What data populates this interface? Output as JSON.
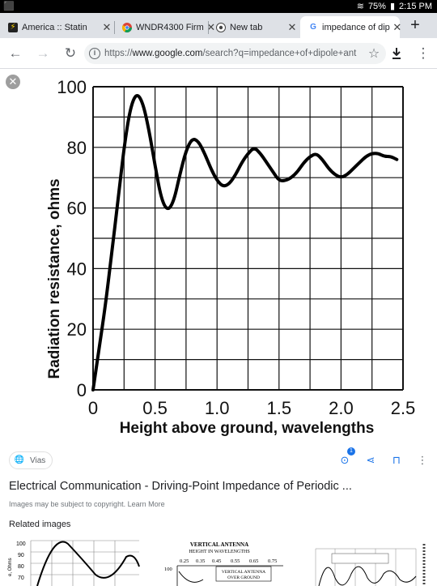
{
  "status_bar": {
    "battery": "75%",
    "time": "2:15 PM"
  },
  "tabs": [
    {
      "title": "America :: Statin",
      "favicon": "lightning-icon",
      "active": false
    },
    {
      "title": "WNDR4300 Firm",
      "favicon": "chrome-icon",
      "active": false
    },
    {
      "title": "New tab",
      "favicon": "chrome-icon",
      "active": false
    },
    {
      "title": "impedance of dip",
      "favicon": "google-icon",
      "active": true
    }
  ],
  "toolbar": {
    "url_prefix": "https://",
    "url_host": "www.google.com",
    "url_rest": "/search?q=impedance+of+dipole+ant"
  },
  "chart_data": {
    "type": "line",
    "xlabel": "Height above ground, wavelengths",
    "ylabel": "Radiation resistance, ohms",
    "xlim": [
      0,
      2.5
    ],
    "ylim": [
      0,
      100
    ],
    "x_ticks": [
      "0",
      "0.5",
      "1.0",
      "1.5",
      "2.0",
      "2.5"
    ],
    "y_ticks": [
      "0",
      "20",
      "40",
      "60",
      "80",
      "100"
    ],
    "grid": true,
    "series": [
      {
        "x": [
          0,
          0.05,
          0.1,
          0.15,
          0.2,
          0.25,
          0.3,
          0.35,
          0.4,
          0.45,
          0.5,
          0.55,
          0.6,
          0.65,
          0.7,
          0.75,
          0.8,
          0.85,
          0.9,
          0.95,
          1.0,
          1.05,
          1.1,
          1.15,
          1.2,
          1.25,
          1.3,
          1.35,
          1.4,
          1.45,
          1.5,
          1.55,
          1.6,
          1.65,
          1.7,
          1.75,
          1.8,
          1.85,
          1.9,
          1.95,
          2.0,
          2.05,
          2.1,
          2.15,
          2.2,
          2.25,
          2.3,
          2.35,
          2.4,
          2.45
        ],
        "values": [
          0,
          14,
          28,
          45,
          62,
          80,
          93,
          98,
          95,
          86,
          74,
          63,
          59,
          62,
          71,
          79,
          83,
          82,
          78,
          73,
          69,
          67,
          68,
          71,
          75,
          78,
          80,
          78,
          75,
          72,
          69,
          69,
          70,
          72,
          75,
          77,
          78,
          76,
          73,
          71,
          70,
          71,
          73,
          75,
          77,
          78,
          78,
          77,
          77,
          76
        ]
      }
    ]
  },
  "chip": {
    "label": "Vias"
  },
  "actions": {
    "lens_badge": "1"
  },
  "image_title": "Electrical Communication - Driving-Point Impedance of Periodic ...",
  "copyright": "Images may be subject to copyright. Learn More",
  "related_label": "Related images",
  "thumb2": {
    "title1": "VERTICAL ANTENNA",
    "title2": "HEIGHT IN WAVELENGTHS",
    "ticks": [
      "0.25",
      "0.35",
      "0.45",
      "0.55",
      "0.65",
      "0.75"
    ],
    "y_top": "100",
    "box1": "VERTICAL ANTENNA",
    "box2": "OVER GROUND"
  },
  "thumb1": {
    "ylabel": "e, Ohms",
    "y_ticks": [
      "100",
      "90",
      "80",
      "70"
    ]
  }
}
